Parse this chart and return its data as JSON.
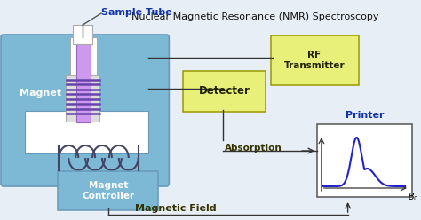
{
  "title": "Nuclear Magnetic Resonance (NMR) Spectroscopy",
  "sample_tube_label": "Sample Tube",
  "magnet_label": "Magnet",
  "detecter_label": "Detecter",
  "rf_label": "RF\nTransmitter",
  "magnet_ctrl_label": "Magnet\nController",
  "printer_label": "Printer",
  "absorption_label": "Absorption",
  "magnetic_field_label": "Magnetic Field",
  "bg_color": "#e8eef5",
  "magnet_color": "#7db8d4",
  "magnet_edge": "#6699bb",
  "detect_color": "#e8f07a",
  "detect_edge": "#999900",
  "rf_color": "#e8f07a",
  "rf_edge": "#999900",
  "ctrl_color": "#7db8d4",
  "ctrl_edge": "#6699bb",
  "printer_bg": "#ffffff",
  "printer_edge": "#555555",
  "coil_color": "#6644aa",
  "tube_color": "#cc99ee",
  "tube_edge": "#9966bb",
  "peak_color": "#2222cc",
  "line_color": "#333333",
  "white": "#ffffff",
  "title_color": "#111111",
  "magnet_text": "#ffffff",
  "label_color": "#1133aa",
  "absorption_color": "#333300",
  "magnetic_color": "#333300"
}
